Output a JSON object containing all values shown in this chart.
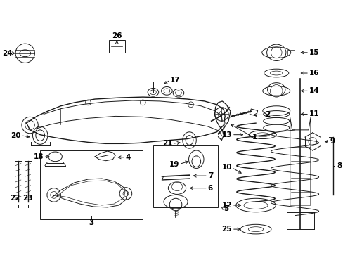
{
  "bg_color": "#ffffff",
  "line_color": "#1a1a1a",
  "label_color": "#000000",
  "fig_width": 4.89,
  "fig_height": 3.6,
  "dpi": 100
}
